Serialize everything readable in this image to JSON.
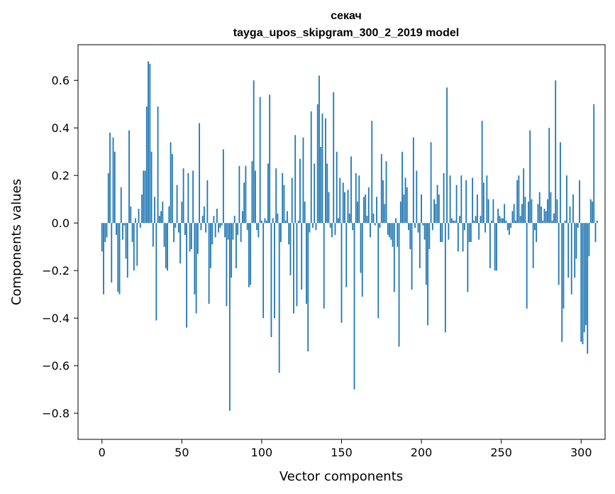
{
  "chart_data": {
    "type": "bar",
    "title": "секач",
    "subtitle": "tayga_upos_skipgram_300_2_2019 model",
    "xlabel": "Vector components",
    "ylabel": "Components values",
    "xlim": [
      -15,
      315
    ],
    "ylim": [
      -0.91,
      0.75
    ],
    "xticks": [
      0,
      50,
      100,
      150,
      200,
      250,
      300
    ],
    "yticks": [
      -0.8,
      -0.6,
      -0.4,
      -0.2,
      0.0,
      0.2,
      0.4,
      0.6
    ],
    "ytick_labels": [
      "−0.8",
      "−0.6",
      "−0.4",
      "−0.2",
      "0.0",
      "0.2",
      "0.4",
      "0.6"
    ],
    "grid": false,
    "bar_color": "#1f77b4",
    "values": [
      -0.12,
      -0.3,
      -0.08,
      -0.06,
      0.21,
      0.38,
      -0.25,
      0.36,
      0.3,
      -0.05,
      -0.29,
      -0.3,
      0.15,
      -0.07,
      -0.01,
      -0.15,
      -0.23,
      0.39,
      0.07,
      -0.08,
      -0.2,
      0.02,
      -0.18,
      0.06,
      -0.02,
      0.12,
      0.22,
      0.22,
      0.49,
      0.68,
      0.67,
      0.3,
      -0.1,
      0.11,
      -0.41,
      0.49,
      0.03,
      0.05,
      0.09,
      -0.1,
      -0.19,
      -0.2,
      0.07,
      0.34,
      0.29,
      -0.08,
      -0.02,
      0.16,
      -0.04,
      -0.17,
      0.09,
      0.23,
      -0.05,
      -0.44,
      0.21,
      -0.12,
      -0.11,
      0.22,
      -0.3,
      -0.38,
      -0.13,
      0.42,
      -0.03,
      0.03,
      0.07,
      -0.04,
      0.18,
      -0.34,
      -0.19,
      -0.09,
      0.03,
      -0.06,
      0.06,
      -0.04,
      -0.02,
      -0.01,
      0.31,
      -0.06,
      -0.35,
      -0.07,
      -0.79,
      -0.23,
      -0.07,
      0.03,
      -0.19,
      -0.05,
      0.24,
      -0.08,
      0.05,
      0.17,
      0.24,
      -0.03,
      -0.27,
      -0.26,
      0.26,
      0.6,
      0.22,
      -0.03,
      -0.06,
      0.53,
      0.01,
      -0.4,
      0.02,
      0.01,
      0.25,
      0.54,
      -0.48,
      0.02,
      -0.4,
      0.23,
      0.04,
      -0.63,
      -0.08,
      0.21,
      0.16,
      0.01,
      0.05,
      -0.09,
      -0.22,
      0.19,
      -0.38,
      0.37,
      -0.35,
      0.01,
      0.27,
      -0.28,
      0.36,
      0.09,
      -0.34,
      -0.54,
      -0.04,
      0.47,
      -0.02,
      0.25,
      -0.03,
      0.5,
      0.62,
      0.32,
      0.46,
      -0.36,
      0.44,
      0.25,
      0.13,
      -0.02,
      -0.06,
      0.55,
      -0.05,
      0.3,
      0.02,
      0.19,
      -0.42,
      0.17,
      0.13,
      -0.27,
      0.14,
      0.04,
      0.28,
      -0.03,
      -0.7,
      0.21,
      0.09,
      0.2,
      -0.21,
      -0.31,
      0.11,
      0.12,
      0.03,
      0.15,
      -0.06,
      0.43,
      0.04,
      -0.01,
      0.11,
      -0.4,
      -0.02,
      0.29,
      0.18,
      0.08,
      0.26,
      -0.05,
      -0.06,
      -0.07,
      -0.1,
      -0.29,
      0.02,
      -0.1,
      -0.52,
      0.09,
      0.3,
      0.12,
      0.19,
      0.15,
      -0.03,
      -0.11,
      -0.28,
      0.36,
      -0.02,
      0.22,
      -0.04,
      -0.19,
      0.12,
      -0.01,
      -0.07,
      -0.26,
      -0.43,
      -0.11,
      0.34,
      -0.03,
      0.1,
      0.08,
      0.16,
      0.12,
      -0.08,
      -0.08,
      0.21,
      -0.46,
      0.57,
      -0.07,
      0.2,
      0.02,
      0.01,
      0.01,
      0.16,
      -0.12,
      0.03,
      0.2,
      -0.12,
      -0.03,
      0.18,
      -0.29,
      -0.08,
      -0.08,
      0.19,
      0.01,
      0.03,
      0.12,
      -0.07,
      0.03,
      0.43,
      0.17,
      -0.04,
      0.2,
      0.1,
      -0.19,
      0.01,
      0.1,
      -0.2,
      -0.2,
      0.06,
      0.03,
      0.02,
      0.02,
      0.08,
      0.01,
      -0.03,
      -0.05,
      -0.02,
      0.05,
      0.08,
      0.01,
      0.18,
      0.2,
      0.03,
      0.08,
      0.23,
      0.11,
      -0.36,
      0.09,
      0.39,
      0.1,
      -0.19,
      -0.03,
      -0.08,
      0.08,
      0.13,
      0.07,
      0.01,
      0.06,
      0.05,
      0.1,
      0.4,
      0.13,
      0.01,
      0.04,
      0.6,
      0.1,
      -0.26,
      0.34,
      -0.5,
      -0.36,
      0.01,
      0.2,
      -0.23,
      0.07,
      -0.3,
      0.12,
      -0.23,
      -0.15,
      -0.02,
      0.18,
      -0.5,
      -0.51,
      -0.46,
      -0.43,
      -0.55,
      -0.14,
      0.1,
      0.09,
      0.5,
      -0.08,
      0.01
    ]
  }
}
